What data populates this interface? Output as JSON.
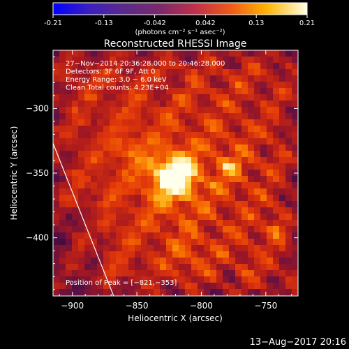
{
  "colorbar": {
    "tick_labels": [
      "-0.21",
      "-0.13",
      "-0.042",
      "0.042",
      "0.13",
      "0.21"
    ],
    "unit_label": "(photons cm⁻² s⁻¹ asec⁻²)",
    "min": -0.21,
    "max": 0.21
  },
  "chart_data": {
    "type": "heatmap",
    "title": "Reconstructed RHESSI Image",
    "xlabel": "Heliocentric X (arcsec)",
    "ylabel": "Heliocentric Y (arcsec)",
    "xlim": [
      -915,
      -725
    ],
    "ylim": [
      -445,
      -255
    ],
    "x_ticks": [
      {
        "value": -900,
        "label": "−900"
      },
      {
        "value": -850,
        "label": "−850"
      },
      {
        "value": -800,
        "label": "−800"
      },
      {
        "value": -750,
        "label": "−750"
      }
    ],
    "y_ticks": [
      {
        "value": -300,
        "label": "−300"
      },
      {
        "value": -350,
        "label": "−350"
      },
      {
        "value": -400,
        "label": "−400"
      }
    ],
    "info_lines": [
      "27−Nov−2014 20:36:28.000 to 20:46:28.000",
      "Detectors: 3F 6F 9F, Att 0",
      "Energy Range: 3.0 − 6.0 keV",
      "Clean     Total counts: 4.23E+04"
    ],
    "peak_label": "Position of Peak = [−821,−353]",
    "peak": [
      -821,
      -353
    ],
    "peak_value": 0.21,
    "limb_line": [
      [
        -915,
        -327
      ],
      [
        -868,
        -445
      ]
    ],
    "colormap": "red-temperature"
  },
  "footer": {
    "timestamp": "13−Aug−2017 20:16"
  }
}
